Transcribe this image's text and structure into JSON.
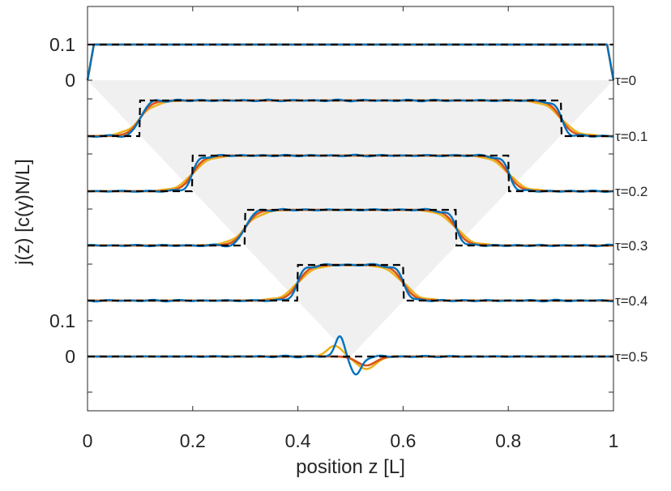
{
  "chart_data": {
    "type": "line",
    "xlabel": "position z [L]",
    "ylabel": "j(z) [c(γ)N/L]",
    "xlim": [
      0,
      1
    ],
    "x_ticks": [
      "0",
      "0.2",
      "0.4",
      "0.6",
      "0.8",
      "1"
    ],
    "y_ticks_upper": [
      "0.1",
      "0"
    ],
    "y_ticks_lower": [
      "0.1",
      "0"
    ],
    "grid": false,
    "legend": "none",
    "plateau_value": 0.1,
    "curves": [
      {
        "tau_label": "τ=0",
        "tau": 0.0,
        "plateau_start": 0.0,
        "plateau_end": 1.0
      },
      {
        "tau_label": "τ=0.1",
        "tau": 0.1,
        "plateau_start": 0.1,
        "plateau_end": 0.9
      },
      {
        "tau_label": "τ=0.2",
        "tau": 0.2,
        "plateau_start": 0.2,
        "plateau_end": 0.8
      },
      {
        "tau_label": "τ=0.3",
        "tau": 0.3,
        "plateau_start": 0.3,
        "plateau_end": 0.7
      },
      {
        "tau_label": "τ=0.4",
        "tau": 0.4,
        "plateau_start": 0.4,
        "plateau_end": 0.6
      },
      {
        "tau_label": "τ=0.5",
        "tau": 0.5,
        "plateau_start": 0.5,
        "plateau_end": 0.5
      }
    ],
    "series_colors": {
      "exact_dashed": "#000000",
      "blue": "#0072bd",
      "orange": "#d95319",
      "yellow": "#edb120",
      "light_cone": "#f0f0f0"
    }
  }
}
